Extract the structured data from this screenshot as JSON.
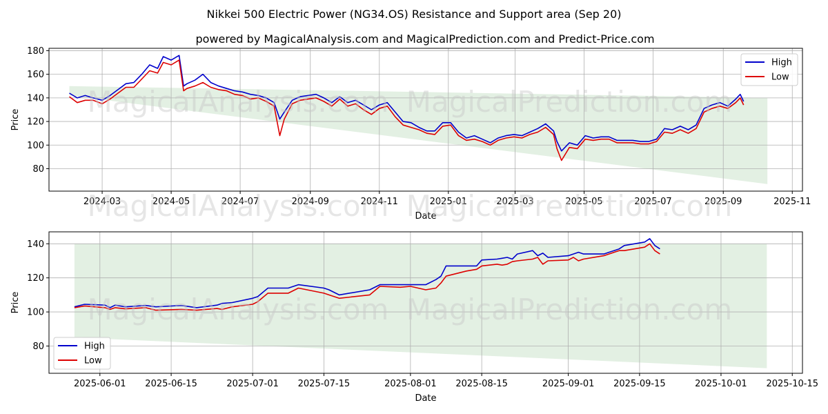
{
  "title": "Nikkei 500 Electric Power (NG34.OS) Resistance and Support area (Sep 20)",
  "subtitle": "powered by MagicalAnalysis.com and MagicalPrediction.com and Predict-Price.com",
  "watermarks": [
    "MagicalAnalysis.com",
    "MagicalPrediction.com"
  ],
  "colors": {
    "high": "#0000cc",
    "low": "#dd0000",
    "band": "#e3f0e3"
  },
  "chart_data": [
    {
      "type": "line",
      "title": "Nikkei 500 Electric Power (NG34.OS) Resistance and Support area (Sep 20)",
      "xlabel": "Date",
      "ylabel": "Price",
      "xlim": [
        "2024-01-14",
        "2025-11-10"
      ],
      "ylim": [
        61,
        182
      ],
      "x_ticks": [
        "2024-03-01",
        "2024-05-01",
        "2024-07-01",
        "2024-09-01",
        "2024-11-01",
        "2025-01-01",
        "2025-03-01",
        "2025-05-01",
        "2025-07-01",
        "2025-09-01",
        "2025-11-01"
      ],
      "x_tick_labels": [
        "2024-03",
        "2024-05",
        "2024-07",
        "2024-09",
        "2024-11",
        "2025-01",
        "2025-03",
        "2025-05",
        "2025-07",
        "2025-09",
        "2025-11"
      ],
      "y_ticks": [
        80,
        100,
        120,
        140,
        160,
        180
      ],
      "y_tick_labels": [
        "80",
        "100",
        "120",
        "140",
        "160",
        "180"
      ],
      "legend": {
        "position": "top-right",
        "entries": [
          "High",
          "Low"
        ]
      },
      "band": {
        "x": [
          "2024-02-01",
          "2025-10-10"
        ],
        "upper": [
          150,
          140
        ],
        "lower": [
          142,
          67
        ]
      },
      "x": [
        "2024-02-01",
        "2024-02-08",
        "2024-02-15",
        "2024-02-22",
        "2024-03-01",
        "2024-03-08",
        "2024-03-15",
        "2024-03-22",
        "2024-03-29",
        "2024-04-05",
        "2024-04-12",
        "2024-04-19",
        "2024-04-24",
        "2024-05-01",
        "2024-05-08",
        "2024-05-12",
        "2024-05-15",
        "2024-05-22",
        "2024-05-29",
        "2024-06-05",
        "2024-06-12",
        "2024-06-19",
        "2024-06-26",
        "2024-07-03",
        "2024-07-10",
        "2024-07-17",
        "2024-07-24",
        "2024-07-31",
        "2024-08-05",
        "2024-08-09",
        "2024-08-16",
        "2024-08-23",
        "2024-08-30",
        "2024-09-06",
        "2024-09-13",
        "2024-09-20",
        "2024-09-27",
        "2024-10-04",
        "2024-10-11",
        "2024-10-18",
        "2024-10-25",
        "2024-11-01",
        "2024-11-08",
        "2024-11-15",
        "2024-11-22",
        "2024-11-29",
        "2024-12-06",
        "2024-12-13",
        "2024-12-20",
        "2024-12-27",
        "2025-01-03",
        "2025-01-10",
        "2025-01-17",
        "2025-01-24",
        "2025-01-31",
        "2025-02-07",
        "2025-02-14",
        "2025-02-21",
        "2025-02-28",
        "2025-03-07",
        "2025-03-14",
        "2025-03-21",
        "2025-03-28",
        "2025-04-04",
        "2025-04-07",
        "2025-04-11",
        "2025-04-18",
        "2025-04-25",
        "2025-05-02",
        "2025-05-09",
        "2025-05-16",
        "2025-05-23",
        "2025-05-30",
        "2025-06-06",
        "2025-06-13",
        "2025-06-20",
        "2025-06-27",
        "2025-07-04",
        "2025-07-11",
        "2025-07-18",
        "2025-07-25",
        "2025-08-01",
        "2025-08-08",
        "2025-08-15",
        "2025-08-22",
        "2025-08-29",
        "2025-09-05",
        "2025-09-12",
        "2025-09-16",
        "2025-09-19"
      ],
      "series": [
        {
          "name": "High",
          "values": [
            144,
            140,
            142,
            140,
            138,
            142,
            147,
            152,
            153,
            160,
            168,
            165,
            175,
            172,
            176,
            150,
            152,
            155,
            160,
            153,
            150,
            148,
            146,
            145,
            143,
            142,
            140,
            136,
            122,
            128,
            138,
            141,
            142,
            143,
            140,
            136,
            141,
            136,
            138,
            134,
            130,
            134,
            136,
            128,
            120,
            119,
            115,
            112,
            112,
            119,
            119,
            111,
            106,
            108,
            105,
            102,
            106,
            108,
            109,
            108,
            111,
            114,
            118,
            112,
            103,
            95,
            102,
            100,
            108,
            106,
            107,
            107,
            104,
            104,
            104,
            103,
            103,
            105,
            114,
            113,
            116,
            113,
            117,
            131,
            134,
            136,
            133,
            139,
            143,
            137
          ]
        },
        {
          "name": "Low",
          "values": [
            141,
            136,
            138,
            138,
            135,
            139,
            144,
            149,
            149,
            156,
            163,
            161,
            170,
            168,
            172,
            146,
            148,
            150,
            153,
            149,
            147,
            146,
            143,
            142,
            139,
            140,
            137,
            133,
            108,
            122,
            135,
            138,
            139,
            140,
            137,
            133,
            139,
            133,
            135,
            130,
            126,
            131,
            133,
            124,
            117,
            115,
            113,
            110,
            109,
            116,
            117,
            108,
            104,
            105,
            103,
            100,
            104,
            106,
            107,
            106,
            109,
            111,
            115,
            109,
            97,
            87,
            98,
            97,
            105,
            104,
            105,
            105,
            102,
            102,
            102,
            101,
            101,
            103,
            111,
            110,
            113,
            110,
            114,
            128,
            131,
            133,
            131,
            136,
            140,
            134
          ]
        }
      ]
    },
    {
      "type": "line",
      "xlabel": "Date",
      "ylabel": "Price",
      "xlim": [
        "2025-05-22",
        "2025-10-17"
      ],
      "ylim": [
        64,
        147
      ],
      "x_ticks": [
        "2025-06-01",
        "2025-06-15",
        "2025-07-01",
        "2025-07-15",
        "2025-08-01",
        "2025-08-15",
        "2025-09-01",
        "2025-09-15",
        "2025-10-01",
        "2025-10-15"
      ],
      "x_tick_labels": [
        "2025-06-01",
        "2025-06-15",
        "2025-07-01",
        "2025-07-15",
        "2025-08-01",
        "2025-08-15",
        "2025-09-01",
        "2025-09-15",
        "2025-10-01",
        "2025-10-15"
      ],
      "y_ticks": [
        80,
        100,
        120,
        140
      ],
      "y_tick_labels": [
        "80",
        "100",
        "120",
        "140"
      ],
      "legend": {
        "position": "bottom-left",
        "entries": [
          "High",
          "Low"
        ]
      },
      "band": {
        "x": [
          "2025-05-27",
          "2025-10-10"
        ],
        "upper": [
          140,
          140
        ],
        "lower": [
          85,
          67
        ]
      },
      "x": [
        "2025-05-27",
        "2025-05-29",
        "2025-06-02",
        "2025-06-03",
        "2025-06-04",
        "2025-06-06",
        "2025-06-10",
        "2025-06-12",
        "2025-06-17",
        "2025-06-20",
        "2025-06-24",
        "2025-06-25",
        "2025-06-27",
        "2025-07-01",
        "2025-07-02",
        "2025-07-04",
        "2025-07-08",
        "2025-07-10",
        "2025-07-15",
        "2025-07-16",
        "2025-07-18",
        "2025-07-24",
        "2025-07-26",
        "2025-07-30",
        "2025-08-01",
        "2025-08-04",
        "2025-08-06",
        "2025-08-07",
        "2025-08-08",
        "2025-08-12",
        "2025-08-14",
        "2025-08-15",
        "2025-08-18",
        "2025-08-19",
        "2025-08-20",
        "2025-08-21",
        "2025-08-22",
        "2025-08-25",
        "2025-08-26",
        "2025-08-27",
        "2025-08-28",
        "2025-09-01",
        "2025-09-02",
        "2025-09-03",
        "2025-09-04",
        "2025-09-08",
        "2025-09-09",
        "2025-09-10",
        "2025-09-11",
        "2025-09-12",
        "2025-09-16",
        "2025-09-17",
        "2025-09-18",
        "2025-09-19"
      ],
      "series": [
        {
          "name": "High",
          "values": [
            103,
            104.5,
            104,
            102.5,
            104,
            103,
            103.8,
            103,
            103.8,
            102.5,
            104,
            105,
            105.5,
            108,
            109,
            114,
            114,
            116,
            114,
            113,
            110,
            113,
            116,
            116,
            116,
            116,
            119,
            121,
            127,
            127,
            127,
            130.5,
            131,
            131.5,
            132,
            131,
            134,
            136,
            133,
            134.5,
            132,
            133,
            134,
            135,
            134,
            134,
            135,
            136,
            137,
            139,
            141,
            143,
            139,
            137
          ]
        },
        {
          "name": "Low",
          "values": [
            102.5,
            103.5,
            102.5,
            101.5,
            102.5,
            101.8,
            102.5,
            101,
            101.5,
            101,
            102,
            101.5,
            103,
            104.5,
            106,
            111,
            111,
            114,
            111,
            110,
            108,
            110,
            115,
            114.5,
            115,
            113,
            114,
            117,
            121,
            124,
            125,
            127,
            128,
            127.5,
            128,
            129.5,
            130,
            131,
            132,
            128,
            130,
            130.5,
            132,
            130,
            131,
            133,
            134,
            135,
            136,
            136,
            138,
            140,
            136,
            134
          ]
        }
      ]
    }
  ]
}
